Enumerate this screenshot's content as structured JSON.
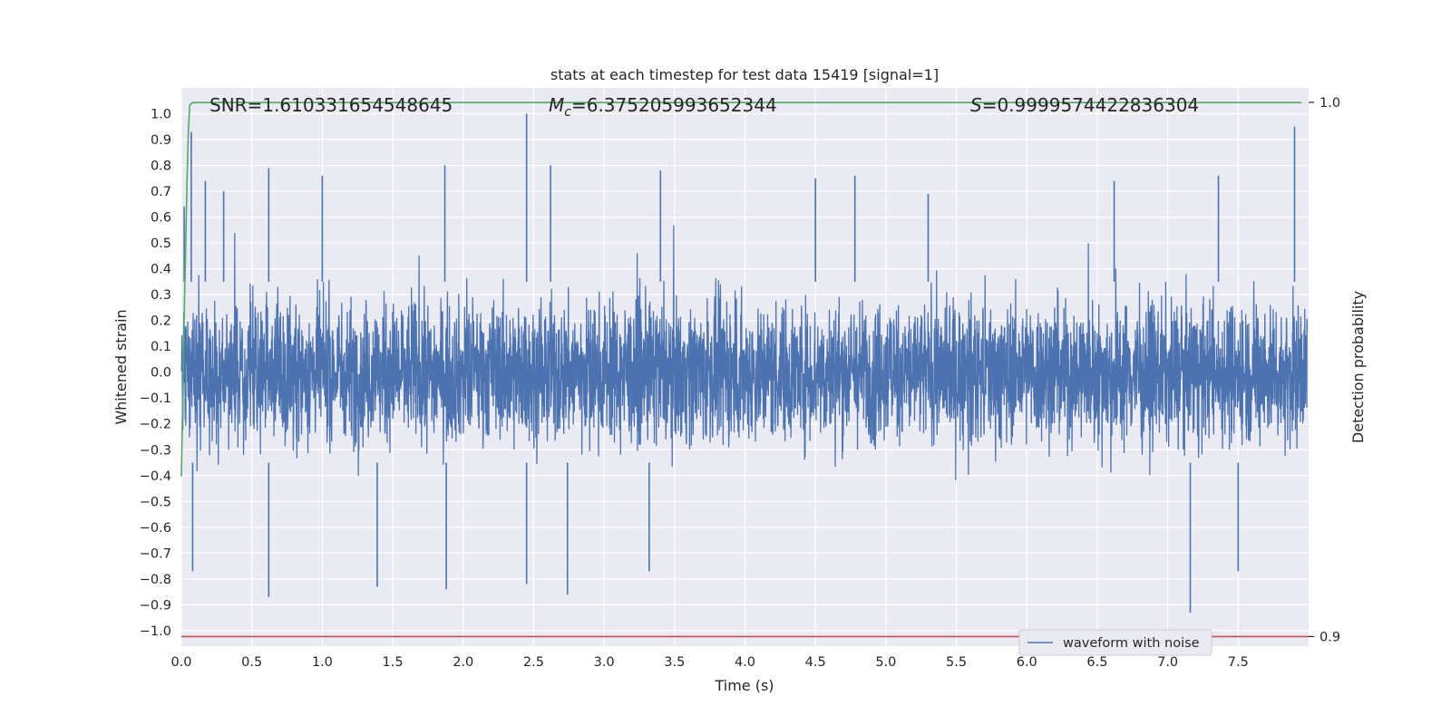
{
  "chart_data": {
    "type": "line",
    "title": "stats at each timestep for test data 15419 [signal=1]",
    "xlabel": "Time (s)",
    "ylabel": "Whitened strain",
    "y2label": "Detection probability",
    "xlim": [
      0.0,
      8.0
    ],
    "ylim": [
      -1.06,
      1.1
    ],
    "y2lim": [
      0.8982,
      1.0027
    ],
    "x_ticks": [
      0.0,
      0.5,
      1.0,
      1.5,
      2.0,
      2.5,
      3.0,
      3.5,
      4.0,
      4.5,
      5.0,
      5.5,
      6.0,
      6.5,
      7.0,
      7.5
    ],
    "x_tick_labels": [
      "0.0",
      "0.5",
      "1.0",
      "1.5",
      "2.0",
      "2.5",
      "3.0",
      "3.5",
      "4.0",
      "4.5",
      "5.0",
      "5.5",
      "6.0",
      "6.5",
      "7.0",
      "7.5"
    ],
    "y_ticks": [
      1.0,
      0.9,
      0.8,
      0.7,
      0.6,
      0.5,
      0.4,
      0.3,
      0.2,
      0.1,
      0.0,
      -0.1,
      -0.2,
      -0.3,
      -0.4,
      -0.5,
      -0.6,
      -0.7,
      -0.8,
      -0.9,
      -1.0
    ],
    "y_tick_labels": [
      "1.0",
      "0.9",
      "0.8",
      "0.7",
      "0.6",
      "0.5",
      "0.4",
      "0.3",
      "0.2",
      "0.1",
      "0.0",
      "−0.1",
      "−0.2",
      "−0.3",
      "−0.4",
      "−0.5",
      "−0.6",
      "−0.7",
      "−0.8",
      "−0.9",
      "−1.0"
    ],
    "y2_ticks": [
      1.0,
      0.9
    ],
    "y2_tick_labels": [
      "1.0",
      "0.9"
    ],
    "grid": true,
    "legend": {
      "placement": "lower-right",
      "entries": [
        "waveform with noise"
      ]
    },
    "annotations": {
      "snr": "SNR=1.610331654548645",
      "mc_symbol": "M",
      "mc_subscript": "c",
      "mc_value": "=6.375205993652344",
      "s_symbol": "S",
      "s_value": "=0.9999574422836304"
    },
    "series": [
      {
        "name": "waveform with noise",
        "axis": "left",
        "color": "#4c72b0",
        "x_range": [
          0.0,
          7.99
        ],
        "n_samples": 16384,
        "typical_range": [
          -0.45,
          0.45
        ],
        "peaks": [
          [
            0.02,
            0.64
          ],
          [
            0.07,
            0.93
          ],
          [
            0.17,
            0.74
          ],
          [
            0.3,
            0.7
          ],
          [
            0.62,
            0.79
          ],
          [
            1.0,
            0.76
          ],
          [
            1.87,
            0.8
          ],
          [
            2.45,
            1.0
          ],
          [
            2.62,
            0.8
          ],
          [
            3.4,
            0.78
          ],
          [
            4.5,
            0.75
          ],
          [
            4.78,
            0.76
          ],
          [
            5.3,
            0.69
          ],
          [
            6.62,
            0.74
          ],
          [
            7.36,
            0.76
          ],
          [
            7.9,
            0.95
          ]
        ],
        "troughs": [
          [
            0.08,
            -0.77
          ],
          [
            0.62,
            -0.87
          ],
          [
            1.39,
            -0.83
          ],
          [
            1.88,
            -0.84
          ],
          [
            2.45,
            -0.82
          ],
          [
            2.74,
            -0.86
          ],
          [
            3.32,
            -0.77
          ],
          [
            7.16,
            -0.93
          ],
          [
            7.5,
            -0.77
          ]
        ]
      },
      {
        "name": "detection probability",
        "axis": "right",
        "color": "#55a868",
        "x": [
          0.0,
          0.02,
          0.04,
          0.05,
          0.06,
          0.08,
          0.15,
          7.95
        ],
        "y": [
          0.93,
          0.96,
          0.985,
          0.995,
          0.9995,
          0.99995,
          0.99996,
          0.99996
        ]
      },
      {
        "name": "threshold",
        "axis": "right",
        "color": "#c44e52",
        "x": [
          0.0,
          8.0
        ],
        "y": [
          0.9,
          0.9
        ]
      }
    ]
  }
}
